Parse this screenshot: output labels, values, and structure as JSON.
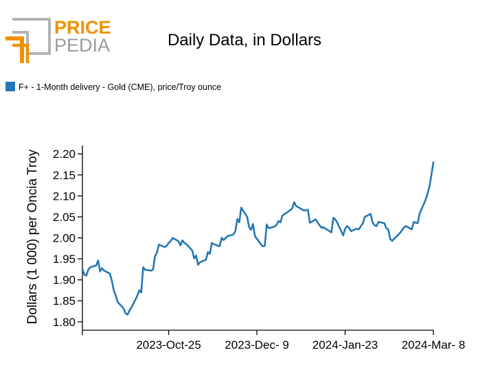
{
  "logo": {
    "word1": "PRICE",
    "word2": "PEDIA",
    "orange": "#f29100",
    "gray": "#9a9a9a"
  },
  "chart_data": {
    "type": "line",
    "title": "Daily Data, in Dollars",
    "ylabel": "Dollars (1 000) per Oncia Troy",
    "xlabel": "",
    "ylim": [
      1.78,
      2.22
    ],
    "yticks": [
      1.8,
      1.85,
      1.9,
      1.95,
      2.0,
      2.05,
      2.1,
      2.15,
      2.2
    ],
    "ytick_labels": [
      "1.80",
      "1.85",
      "1.90",
      "1.95",
      "2.00",
      "2.05",
      "2.10",
      "2.15",
      "2.20"
    ],
    "xticks": [
      {
        "date": "2023-09-11",
        "label": ""
      },
      {
        "date": "2023-10-25",
        "label": "2023-Oct-25"
      },
      {
        "date": "2023-12-09",
        "label": "2023-Dec- 9"
      },
      {
        "date": "2024-01-23",
        "label": "2024-Jan-23"
      },
      {
        "date": "2024-03-08",
        "label": "2024-Mar- 8"
      }
    ],
    "xlim": [
      "2023-09-11",
      "2024-03-08"
    ],
    "legend": {
      "placement": "top-left"
    },
    "grid": false,
    "series": [
      {
        "name": "F+ - 1-Month delivery - Gold (CME), price/Troy ounce",
        "color": "#2476b4",
        "x": [
          "2023-09-11",
          "2023-09-12",
          "2023-09-13",
          "2023-09-14",
          "2023-09-15",
          "2023-09-18",
          "2023-09-19",
          "2023-09-20",
          "2023-09-21",
          "2023-09-22",
          "2023-09-25",
          "2023-09-26",
          "2023-09-27",
          "2023-09-28",
          "2023-09-29",
          "2023-10-02",
          "2023-10-03",
          "2023-10-04",
          "2023-10-05",
          "2023-10-06",
          "2023-10-09",
          "2023-10-10",
          "2023-10-11",
          "2023-10-12",
          "2023-10-13",
          "2023-10-16",
          "2023-10-17",
          "2023-10-18",
          "2023-10-19",
          "2023-10-20",
          "2023-10-23",
          "2023-10-24",
          "2023-10-25",
          "2023-10-26",
          "2023-10-27",
          "2023-10-30",
          "2023-10-31",
          "2023-11-01",
          "2023-11-02",
          "2023-11-03",
          "2023-11-06",
          "2023-11-07",
          "2023-11-08",
          "2023-11-09",
          "2023-11-10",
          "2023-11-13",
          "2023-11-14",
          "2023-11-15",
          "2023-11-16",
          "2023-11-17",
          "2023-11-20",
          "2023-11-21",
          "2023-11-22",
          "2023-11-24",
          "2023-11-27",
          "2023-11-28",
          "2023-11-29",
          "2023-11-30",
          "2023-12-01",
          "2023-12-04",
          "2023-12-05",
          "2023-12-06",
          "2023-12-07",
          "2023-12-08",
          "2023-12-11",
          "2023-12-12",
          "2023-12-13",
          "2023-12-14",
          "2023-12-15",
          "2023-12-18",
          "2023-12-19",
          "2023-12-20",
          "2023-12-21",
          "2023-12-22",
          "2023-12-26",
          "2023-12-27",
          "2023-12-28",
          "2023-12-29",
          "2024-01-02",
          "2024-01-03",
          "2024-01-04",
          "2024-01-05",
          "2024-01-08",
          "2024-01-09",
          "2024-01-10",
          "2024-01-11",
          "2024-01-12",
          "2024-01-16",
          "2024-01-17",
          "2024-01-18",
          "2024-01-19",
          "2024-01-22",
          "2024-01-23",
          "2024-01-24",
          "2024-01-25",
          "2024-01-26",
          "2024-01-29",
          "2024-01-30",
          "2024-01-31",
          "2024-02-01",
          "2024-02-02",
          "2024-02-05",
          "2024-02-06",
          "2024-02-07",
          "2024-02-08",
          "2024-02-09",
          "2024-02-12",
          "2024-02-13",
          "2024-02-14",
          "2024-02-15",
          "2024-02-16",
          "2024-02-20",
          "2024-02-21",
          "2024-02-22",
          "2024-02-23",
          "2024-02-26",
          "2024-02-27",
          "2024-02-28",
          "2024-02-29",
          "2024-03-01",
          "2024-03-04",
          "2024-03-05",
          "2024-03-06",
          "2024-03-07",
          "2024-03-08"
        ],
        "values": [
          1.926,
          1.912,
          1.91,
          1.924,
          1.93,
          1.934,
          1.946,
          1.92,
          1.928,
          1.922,
          1.915,
          1.898,
          1.875,
          1.862,
          1.847,
          1.832,
          1.82,
          1.817,
          1.827,
          1.834,
          1.862,
          1.875,
          1.87,
          1.93,
          1.924,
          1.922,
          1.924,
          1.956,
          1.965,
          1.984,
          1.978,
          1.981,
          1.988,
          1.992,
          2.0,
          1.992,
          1.982,
          1.994,
          1.988,
          1.985,
          1.97,
          1.951,
          1.958,
          1.936,
          1.942,
          1.948,
          1.966,
          1.962,
          1.988,
          1.985,
          1.98,
          2.0,
          1.995,
          2.004,
          2.008,
          2.016,
          2.045,
          2.037,
          2.072,
          2.05,
          2.026,
          2.019,
          2.033,
          2.004,
          1.985,
          1.98,
          1.981,
          2.032,
          2.023,
          2.027,
          2.031,
          2.04,
          2.037,
          2.053,
          2.066,
          2.07,
          2.085,
          2.076,
          2.065,
          2.066,
          2.067,
          2.036,
          2.044,
          2.036,
          2.03,
          2.024,
          2.025,
          2.013,
          2.048,
          2.044,
          2.036,
          2.006,
          2.022,
          2.028,
          2.024,
          2.016,
          2.022,
          2.02,
          2.028,
          2.034,
          2.05,
          2.057,
          2.037,
          2.03,
          2.028,
          2.038,
          2.035,
          2.023,
          2.02,
          1.997,
          1.993,
          2.012,
          2.018,
          2.025,
          2.028,
          2.02,
          2.038,
          2.036,
          2.035,
          2.058,
          2.09,
          2.105,
          2.122,
          2.15,
          2.18
        ]
      }
    ]
  }
}
